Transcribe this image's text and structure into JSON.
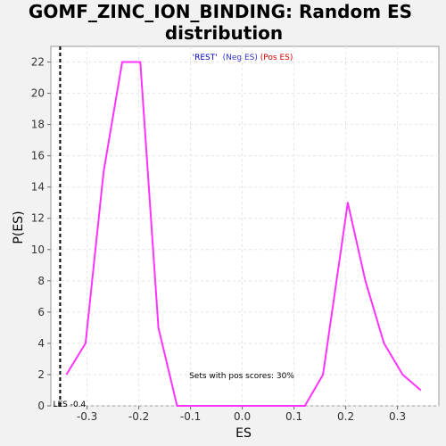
{
  "chart_data": {
    "type": "line",
    "title_line1": "GOMF_ZINC_ION_BINDING: Random ES",
    "title_line2": "distribution",
    "xlabel": "ES",
    "ylabel": "P(ES)",
    "xlim": [
      -0.37,
      0.38
    ],
    "ylim": [
      0,
      23
    ],
    "x_ticks": [
      -0.3,
      -0.2,
      -0.1,
      0.0,
      0.1,
      0.2,
      0.3
    ],
    "x_tick_labels": [
      "-0.3",
      "-0.2",
      "-0.1",
      "0.0",
      "0.1",
      "0.2",
      "0.3"
    ],
    "y_ticks": [
      0,
      2,
      4,
      6,
      8,
      10,
      12,
      14,
      16,
      18,
      20,
      22
    ],
    "y_tick_labels": [
      "0",
      "2",
      "4",
      "6",
      "8",
      "10",
      "12",
      "14",
      "16",
      "18",
      "20",
      "22"
    ],
    "grid": true,
    "legend": {
      "rest_label": "'REST'",
      "neg_label": "(Neg ES)",
      "pos_label": "(Pos ES)",
      "rest_color": "#0000cc",
      "neg_color": "#3333cc",
      "pos_color": "#cc0000"
    },
    "series": [
      {
        "color": "#ff33ff",
        "x": [
          -0.34,
          -0.303,
          -0.268,
          -0.232,
          -0.197,
          -0.162,
          -0.126,
          -0.09,
          -0.055,
          -0.02,
          0.015,
          0.05,
          0.086,
          0.121,
          0.156,
          0.204,
          0.238,
          0.274,
          0.31,
          0.345
        ],
        "y": [
          2,
          4,
          15,
          22,
          22,
          5,
          0,
          0,
          0,
          0,
          0,
          0,
          0,
          0,
          2,
          13,
          8,
          4,
          2,
          1
        ]
      }
    ],
    "es_marker": {
      "x": -0.352,
      "label": "LES -0.4",
      "color": "#000000"
    },
    "annotation": "Sets with pos scores: 30%"
  }
}
